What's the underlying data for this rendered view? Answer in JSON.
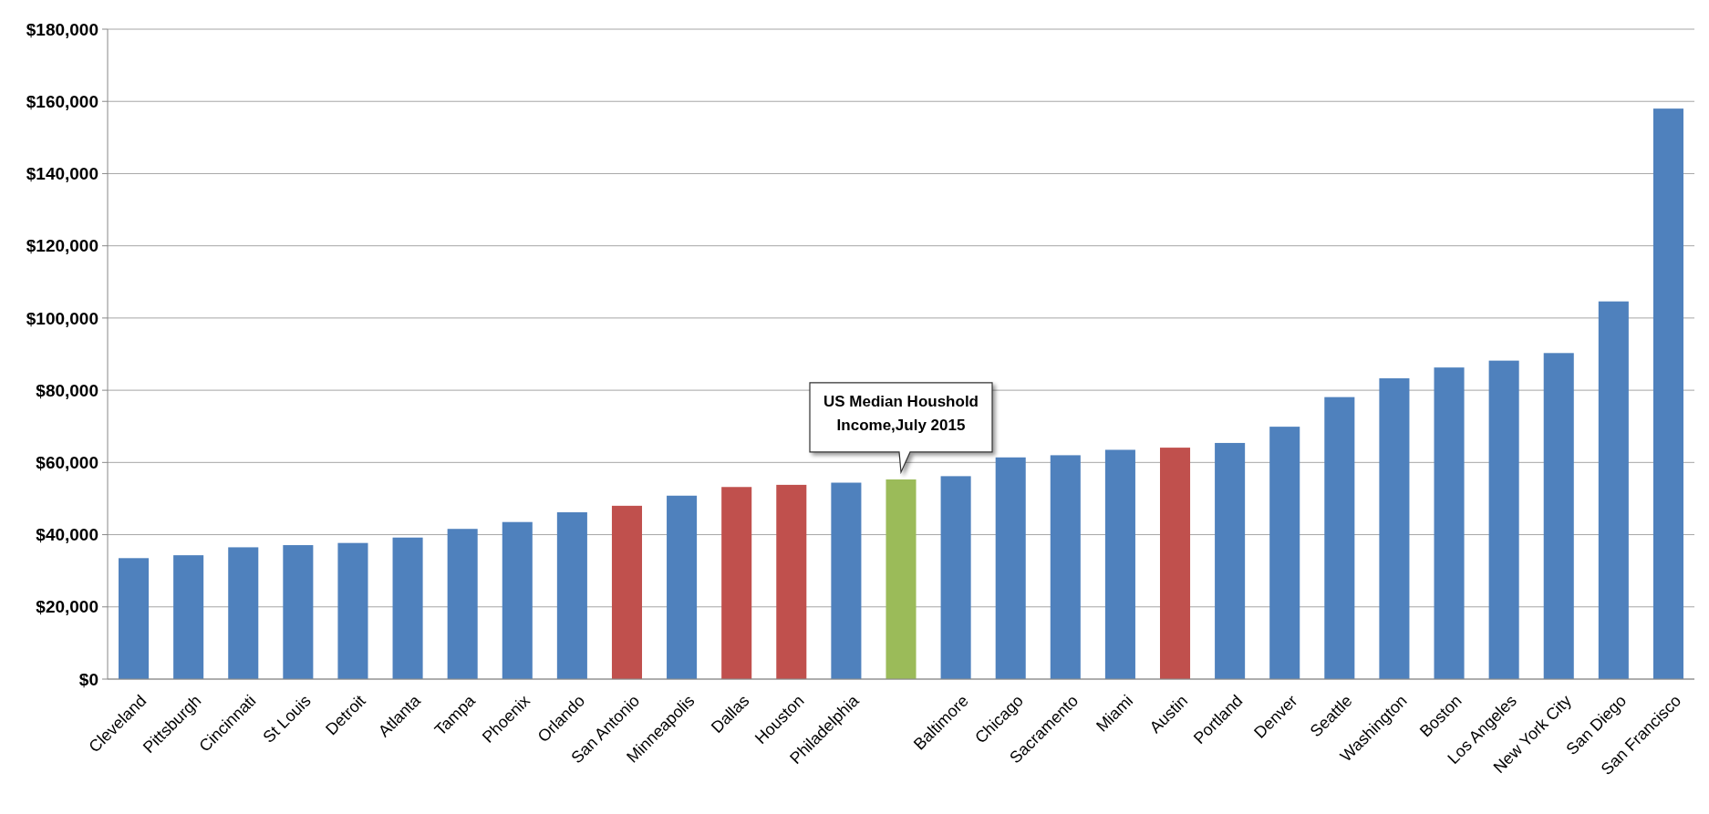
{
  "chart_data": {
    "type": "bar",
    "categories": [
      "Cleveland",
      "Pittsburgh",
      "Cincinnati",
      "St Louis",
      "Detroit",
      "Atlanta",
      "Tampa",
      "Phoenix",
      "Orlando",
      "San Antonio",
      "Minneapolis",
      "Dallas",
      "Houston",
      "Philadelphia",
      null,
      "Baltimore",
      "Chicago",
      "Sacramento",
      "Miami",
      "Austin",
      "Portland",
      "Denver",
      "Seattle",
      "Washington",
      "Boston",
      "Los Angeles",
      "New York City",
      "San Diego",
      "San Francisco"
    ],
    "values": [
      33500,
      34300,
      36500,
      37100,
      37700,
      39200,
      41600,
      43500,
      46200,
      48000,
      50800,
      53200,
      53800,
      54400,
      55300,
      56200,
      61400,
      62000,
      63500,
      64100,
      65400,
      69900,
      78100,
      83300,
      86300,
      88200,
      90300,
      104600,
      158000
    ],
    "colors": [
      "#4f81bd",
      "#4f81bd",
      "#4f81bd",
      "#4f81bd",
      "#4f81bd",
      "#4f81bd",
      "#4f81bd",
      "#4f81bd",
      "#4f81bd",
      "#c0504d",
      "#4f81bd",
      "#c0504d",
      "#c0504d",
      "#4f81bd",
      "#9bbb59",
      "#4f81bd",
      "#4f81bd",
      "#4f81bd",
      "#4f81bd",
      "#c0504d",
      "#4f81bd",
      "#4f81bd",
      "#4f81bd",
      "#4f81bd",
      "#4f81bd",
      "#4f81bd",
      "#4f81bd",
      "#4f81bd",
      "#4f81bd"
    ],
    "ylim": [
      0,
      180000
    ],
    "yticks": [
      {
        "value": 0,
        "label": "$0"
      },
      {
        "value": 20000,
        "label": "$20,000"
      },
      {
        "value": 40000,
        "label": "$40,000"
      },
      {
        "value": 60000,
        "label": "$60,000"
      },
      {
        "value": 80000,
        "label": "$80,000"
      },
      {
        "value": 100000,
        "label": "$100,000"
      },
      {
        "value": 120000,
        "label": "$120,000"
      },
      {
        "value": 140000,
        "label": "$140,000"
      },
      {
        "value": 160000,
        "label": "$160,000"
      },
      {
        "value": 180000,
        "label": "$180,000"
      }
    ],
    "grid": "y",
    "annotations": [
      {
        "text": "US Median Houshold\nIncome,July 2015",
        "y": 55300
      }
    ]
  }
}
